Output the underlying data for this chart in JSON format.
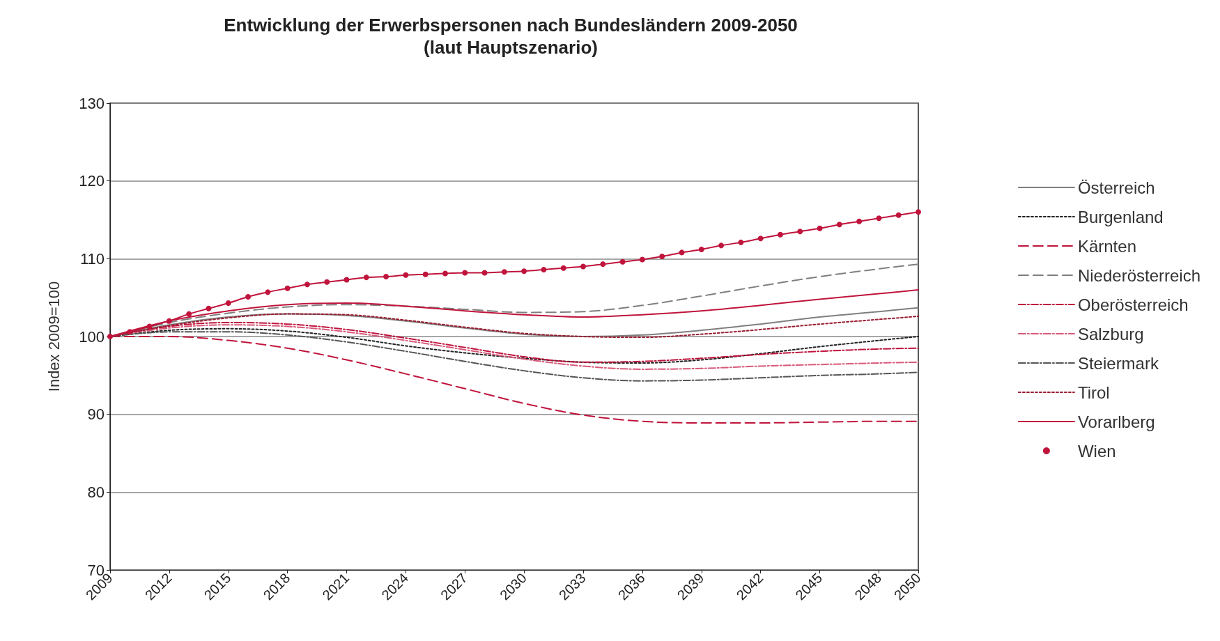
{
  "chart_data": {
    "type": "line",
    "title": "Entwicklung der Erwerbspersonen nach Bundesländern 2009-2050",
    "subtitle": "(laut Hauptszenario)",
    "ylabel": "Index 2009=100",
    "xlim": [
      2009,
      2050
    ],
    "xticks": [
      2009,
      2012,
      2015,
      2018,
      2021,
      2024,
      2027,
      2030,
      2033,
      2036,
      2039,
      2042,
      2045,
      2048,
      2050
    ],
    "ylim": [
      70,
      130
    ],
    "yticks": [
      70,
      80,
      90,
      100,
      110,
      120,
      130
    ],
    "grid": "y",
    "legend": "right",
    "marker": "none",
    "series": [
      {
        "name": "Österreich",
        "color": "#7f7f7f",
        "line_style": "solid",
        "x": [
          2009,
          2012,
          2015,
          2018,
          2021,
          2024,
          2027,
          2030,
          2033,
          2036,
          2039,
          2042,
          2045,
          2048,
          2050
        ],
        "values": [
          100,
          101.5,
          102.5,
          102.9,
          102.7,
          102.0,
          101.1,
          100.3,
          100.0,
          100.2,
          100.8,
          101.6,
          102.5,
          103.2,
          103.7
        ]
      },
      {
        "name": "Burgenland",
        "color": "#222222",
        "line_style": "dotted",
        "x": [
          2009,
          2012,
          2015,
          2018,
          2021,
          2024,
          2027,
          2030,
          2033,
          2036,
          2039,
          2042,
          2045,
          2048,
          2050
        ],
        "values": [
          100,
          100.8,
          101.0,
          100.7,
          99.9,
          98.8,
          97.9,
          97.2,
          96.7,
          96.6,
          97.0,
          97.8,
          98.7,
          99.5,
          100.0
        ]
      },
      {
        "name": "Kärnten",
        "color": "#c0143c",
        "line_style": "dashed",
        "x": [
          2009,
          2012,
          2015,
          2018,
          2021,
          2024,
          2027,
          2030,
          2033,
          2036,
          2039,
          2042,
          2045,
          2048,
          2050
        ],
        "values": [
          100,
          100.0,
          99.5,
          98.5,
          97.0,
          95.2,
          93.3,
          91.4,
          89.9,
          89.1,
          88.9,
          88.9,
          89.0,
          89.1,
          89.1
        ]
      },
      {
        "name": "Niederösterreich",
        "color": "#7f7f7f",
        "line_style": "dashed",
        "x": [
          2009,
          2012,
          2015,
          2018,
          2021,
          2024,
          2027,
          2030,
          2033,
          2036,
          2039,
          2042,
          2045,
          2048,
          2050
        ],
        "values": [
          100,
          101.8,
          103.0,
          103.8,
          104.1,
          103.9,
          103.5,
          103.1,
          103.2,
          104.0,
          105.2,
          106.5,
          107.7,
          108.7,
          109.3
        ]
      },
      {
        "name": "Oberösterreich",
        "color": "#c0143c",
        "line_style": "dashdot",
        "x": [
          2009,
          2012,
          2015,
          2018,
          2021,
          2024,
          2027,
          2030,
          2033,
          2036,
          2039,
          2042,
          2045,
          2048,
          2050
        ],
        "values": [
          100,
          101.3,
          101.8,
          101.6,
          100.9,
          99.8,
          98.6,
          97.4,
          96.7,
          96.8,
          97.2,
          97.7,
          98.1,
          98.4,
          98.5
        ]
      },
      {
        "name": "Salzburg",
        "color": "#d9587a",
        "line_style": "dashdot",
        "x": [
          2009,
          2012,
          2015,
          2018,
          2021,
          2024,
          2027,
          2030,
          2033,
          2036,
          2039,
          2042,
          2045,
          2048,
          2050
        ],
        "values": [
          100,
          101.1,
          101.5,
          101.3,
          100.6,
          99.5,
          98.3,
          97.1,
          96.2,
          95.8,
          95.9,
          96.2,
          96.4,
          96.6,
          96.7
        ]
      },
      {
        "name": "Steiermark",
        "color": "#555555",
        "line_style": "dashdot",
        "x": [
          2009,
          2012,
          2015,
          2018,
          2021,
          2024,
          2027,
          2030,
          2033,
          2036,
          2039,
          2042,
          2045,
          2048,
          2050
        ],
        "values": [
          100,
          100.6,
          100.6,
          100.2,
          99.3,
          98.1,
          96.8,
          95.6,
          94.7,
          94.3,
          94.4,
          94.7,
          95.0,
          95.2,
          95.4
        ]
      },
      {
        "name": "Tirol",
        "color": "#9b1b30",
        "line_style": "dotted",
        "x": [
          2009,
          2012,
          2015,
          2018,
          2021,
          2024,
          2027,
          2030,
          2033,
          2036,
          2039,
          2042,
          2045,
          2048,
          2050
        ],
        "values": [
          100,
          101.4,
          102.4,
          102.9,
          102.8,
          102.1,
          101.2,
          100.4,
          100.0,
          99.9,
          100.3,
          100.9,
          101.6,
          102.2,
          102.6
        ]
      },
      {
        "name": "Vorarlberg",
        "color": "#c0143c",
        "line_style": "solid",
        "x": [
          2009,
          2012,
          2015,
          2018,
          2021,
          2024,
          2027,
          2030,
          2033,
          2036,
          2039,
          2042,
          2045,
          2048,
          2050
        ],
        "values": [
          100,
          102,
          103.3,
          104.1,
          104.3,
          103.9,
          103.3,
          102.8,
          102.5,
          102.8,
          103.3,
          104.0,
          104.8,
          105.5,
          106.0
        ]
      },
      {
        "name": "Wien",
        "color": "#c0143c",
        "line_style": "solid",
        "marker": "circle",
        "x": [
          2009,
          2010,
          2011,
          2012,
          2013,
          2014,
          2015,
          2016,
          2017,
          2018,
          2019,
          2020,
          2021,
          2022,
          2023,
          2024,
          2025,
          2026,
          2027,
          2028,
          2029,
          2030,
          2031,
          2032,
          2033,
          2034,
          2035,
          2036,
          2037,
          2038,
          2039,
          2040,
          2041,
          2042,
          2043,
          2044,
          2045,
          2046,
          2047,
          2048,
          2049,
          2050
        ],
        "values": [
          100,
          100.6,
          101.3,
          102,
          102.9,
          103.6,
          104.3,
          105.1,
          105.7,
          106.2,
          106.7,
          107.0,
          107.3,
          107.6,
          107.7,
          107.9,
          108.0,
          108.1,
          108.2,
          108.2,
          108.3,
          108.4,
          108.6,
          108.8,
          109.0,
          109.3,
          109.6,
          109.9,
          110.3,
          110.8,
          111.2,
          111.7,
          112.1,
          112.6,
          113.1,
          113.5,
          113.9,
          114.4,
          114.8,
          115.2,
          115.6,
          116.0
        ]
      }
    ]
  }
}
